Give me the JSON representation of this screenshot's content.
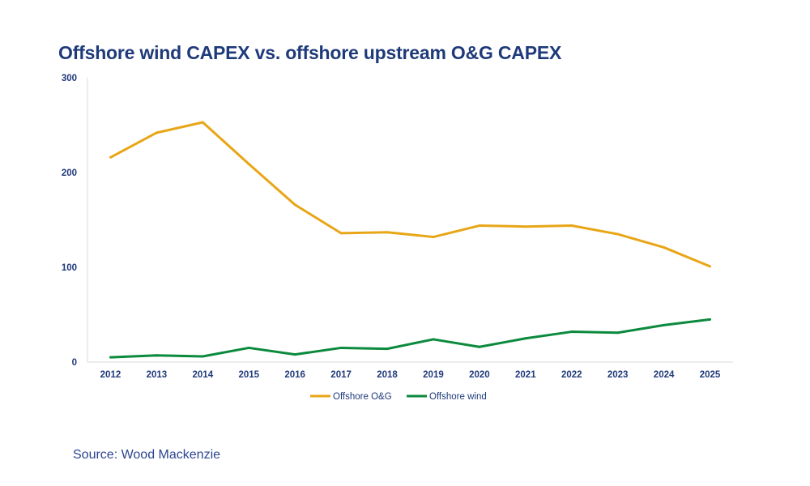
{
  "chart_data": {
    "type": "line",
    "title": "Offshore wind CAPEX vs. offshore upstream O&G CAPEX",
    "xlabel": "",
    "ylabel": "",
    "categories": [
      "2012",
      "2013",
      "2014",
      "2015",
      "2016",
      "2017",
      "2018",
      "2019",
      "2020",
      "2021",
      "2022",
      "2023",
      "2024",
      "2025"
    ],
    "ylim": [
      0,
      300
    ],
    "yticks": [
      "0",
      "100",
      "200",
      "300"
    ],
    "grid": false,
    "legend_position": "bottom",
    "series": [
      {
        "name": "Offshore O&G",
        "color": "#e8a617",
        "values": [
          216,
          242,
          253,
          209,
          166,
          136,
          137,
          132,
          144,
          143,
          144,
          135,
          121,
          101
        ]
      },
      {
        "name": "Offshore wind",
        "color": "#0b8a3e",
        "values": [
          5,
          7,
          6,
          15,
          8,
          15,
          14,
          24,
          16,
          25,
          32,
          31,
          39,
          45
        ]
      }
    ]
  },
  "source": "Source: Wood Mackenzie"
}
